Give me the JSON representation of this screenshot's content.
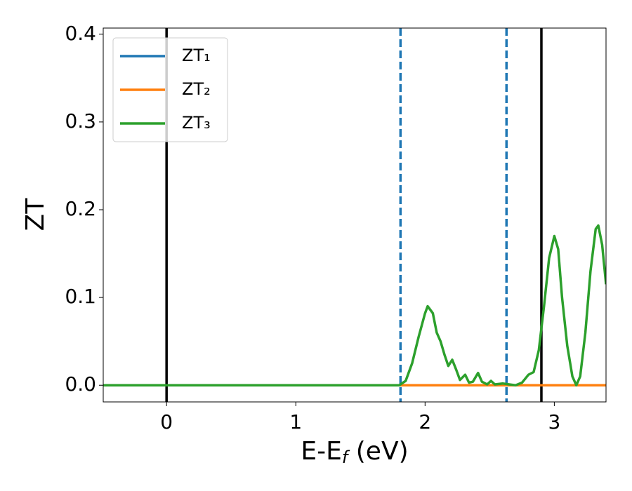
{
  "chart_data": {
    "type": "line",
    "xlabel": [
      "E-E",
      "f",
      " (eV)"
    ],
    "ylabel": "ZT",
    "xlim": [
      -0.49,
      3.4
    ],
    "ylim": [
      -0.019,
      0.407
    ],
    "xticks": [
      0,
      1,
      2,
      3
    ],
    "yticks": [
      {
        "value": 0,
        "label": "0.0"
      },
      0.1,
      0.2,
      0.3,
      0.4
    ],
    "legend": "upper left",
    "vlines": [
      {
        "x": 0,
        "color": "#000000",
        "style": "solid"
      },
      {
        "x": 2.9,
        "color": "#000000",
        "style": "solid"
      },
      {
        "x": 1.81,
        "color": "#1f77b4",
        "style": "dashed"
      },
      {
        "x": 2.63,
        "color": "#1f77b4",
        "style": "dashed"
      }
    ],
    "series": [
      {
        "name": "ZT₁",
        "color": "#1f77b4",
        "x": [
          -0.49,
          3.4
        ],
        "values": [
          0,
          0
        ]
      },
      {
        "name": "ZT₂",
        "color": "#ff7f0e",
        "x": [
          -0.49,
          3.4
        ],
        "values": [
          0,
          0
        ]
      },
      {
        "name": "ZT₃",
        "color": "#2ca02c",
        "x": [
          -0.49,
          1.8,
          1.85,
          1.9,
          1.95,
          2.0,
          2.02,
          2.06,
          2.09,
          2.12,
          2.15,
          2.18,
          2.21,
          2.24,
          2.27,
          2.31,
          2.34,
          2.37,
          2.41,
          2.44,
          2.48,
          2.51,
          2.54,
          2.6,
          2.65,
          2.7,
          2.75,
          2.8,
          2.84,
          2.88,
          2.92,
          2.96,
          3.0,
          3.03,
          3.06,
          3.1,
          3.14,
          3.17,
          3.2,
          3.24,
          3.28,
          3.32,
          3.34,
          3.37,
          3.4
        ],
        "values": [
          0,
          0,
          0.005,
          0.025,
          0.055,
          0.082,
          0.09,
          0.082,
          0.06,
          0.05,
          0.035,
          0.022,
          0.029,
          0.018,
          0.006,
          0.012,
          0.003,
          0.004,
          0.014,
          0.004,
          0.001,
          0.005,
          0.001,
          0.002,
          0.001,
          0,
          0.003,
          0.012,
          0.015,
          0.04,
          0.09,
          0.145,
          0.17,
          0.155,
          0.1,
          0.045,
          0.01,
          0,
          0.01,
          0.06,
          0.13,
          0.178,
          0.182,
          0.16,
          0.115
        ]
      }
    ]
  }
}
